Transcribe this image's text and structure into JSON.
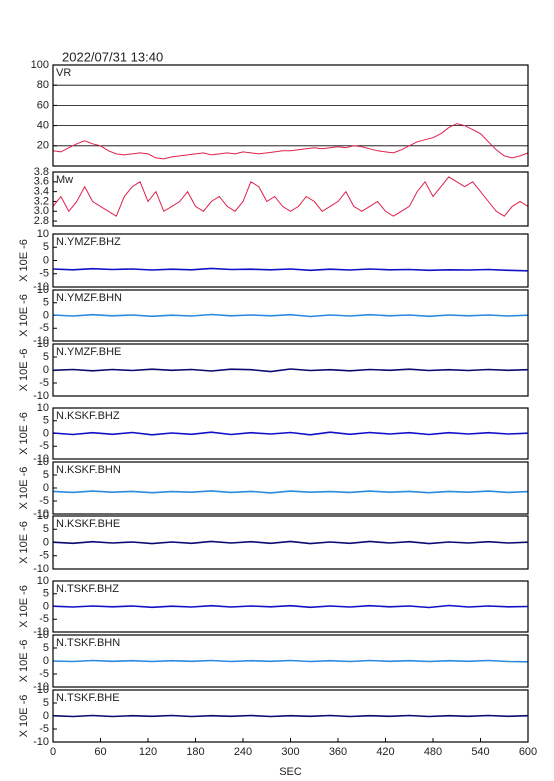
{
  "chart_data": [
    {
      "type": "line",
      "title": "2022/07/31 13:40",
      "xlim": [
        0,
        600
      ],
      "ylim": [
        0,
        100
      ],
      "yticks": [
        20,
        40,
        60,
        80,
        100
      ],
      "grid": true,
      "x": [
        0,
        10,
        20,
        30,
        40,
        50,
        60,
        70,
        80,
        90,
        100,
        110,
        120,
        130,
        140,
        150,
        160,
        170,
        180,
        190,
        200,
        210,
        220,
        230,
        240,
        250,
        260,
        270,
        280,
        290,
        300,
        310,
        320,
        330,
        340,
        350,
        360,
        370,
        380,
        390,
        400,
        410,
        420,
        430,
        440,
        450,
        460,
        470,
        480,
        490,
        500,
        510,
        520,
        530,
        540,
        550,
        560,
        570,
        580,
        590,
        600
      ],
      "series": [
        {
          "name": "VR",
          "color": "#e0204a",
          "values": [
            15,
            14,
            18,
            22,
            25,
            22,
            20,
            15,
            12,
            11,
            12,
            13,
            12,
            8,
            7,
            9,
            10,
            11,
            12,
            13,
            11,
            12,
            13,
            12,
            14,
            13,
            12,
            13,
            14,
            15,
            15,
            16,
            17,
            18,
            17,
            18,
            19,
            18,
            20,
            19,
            17,
            15,
            14,
            13,
            16,
            20,
            24,
            26,
            28,
            32,
            38,
            42,
            40,
            36,
            32,
            24,
            16,
            10,
            8,
            10,
            13
          ]
        }
      ]
    },
    {
      "type": "line",
      "xlim": [
        0,
        600
      ],
      "ylim": [
        2.7,
        3.8
      ],
      "yticks": [
        2.8,
        {
          "value": 3,
          "label": "3.0"
        },
        3.2,
        3.4,
        3.6,
        3.8
      ],
      "grid": false,
      "x": [
        0,
        10,
        20,
        30,
        40,
        50,
        60,
        70,
        80,
        90,
        100,
        110,
        120,
        130,
        140,
        150,
        160,
        170,
        180,
        190,
        200,
        210,
        220,
        230,
        240,
        250,
        260,
        270,
        280,
        290,
        300,
        310,
        320,
        330,
        340,
        350,
        360,
        370,
        380,
        390,
        400,
        410,
        420,
        430,
        440,
        450,
        460,
        470,
        480,
        490,
        500,
        510,
        520,
        530,
        540,
        550,
        560,
        570,
        580,
        590,
        600
      ],
      "series": [
        {
          "name": "Mw",
          "color": "#e0204a",
          "values": [
            3.1,
            3.3,
            3.0,
            3.2,
            3.5,
            3.2,
            3.1,
            3.0,
            2.9,
            3.3,
            3.5,
            3.6,
            3.2,
            3.4,
            3.0,
            3.1,
            3.2,
            3.4,
            3.1,
            3.0,
            3.2,
            3.3,
            3.1,
            3.0,
            3.2,
            3.6,
            3.5,
            3.2,
            3.3,
            3.1,
            3.0,
            3.1,
            3.3,
            3.2,
            3.0,
            3.1,
            3.2,
            3.4,
            3.1,
            3.0,
            3.1,
            3.2,
            3.0,
            2.9,
            3.0,
            3.1,
            3.4,
            3.6,
            3.3,
            3.5,
            3.7,
            3.6,
            3.5,
            3.6,
            3.4,
            3.2,
            3.0,
            2.9,
            3.1,
            3.2,
            3.1
          ]
        }
      ]
    },
    {
      "type": "line",
      "ylabel": "X 10E -6",
      "xlim": [
        0,
        600
      ],
      "ylim": [
        -10,
        10
      ],
      "yticks": [
        -10,
        -5,
        0,
        5,
        10
      ],
      "x": [
        0,
        25,
        50,
        75,
        100,
        125,
        150,
        175,
        200,
        225,
        250,
        275,
        300,
        325,
        350,
        375,
        400,
        425,
        450,
        475,
        500,
        525,
        550,
        575,
        600
      ],
      "series": [
        {
          "name": "N.YMZF.BHZ",
          "color": "#1010c8",
          "values": [
            -3.2,
            -3.5,
            -3.1,
            -3.4,
            -3.2,
            -3.6,
            -3.3,
            -3.5,
            -3.0,
            -3.4,
            -3.3,
            -3.5,
            -3.2,
            -3.7,
            -3.3,
            -3.6,
            -3.2,
            -3.5,
            -3.4,
            -3.7,
            -3.5,
            -3.6,
            -3.4,
            -3.7,
            -3.9
          ]
        }
      ]
    },
    {
      "type": "line",
      "ylabel": "X 10E -6",
      "xlim": [
        0,
        600
      ],
      "ylim": [
        -10,
        10
      ],
      "yticks": [
        -10,
        -5,
        0,
        5,
        10
      ],
      "x": [
        0,
        25,
        50,
        75,
        100,
        125,
        150,
        175,
        200,
        225,
        250,
        275,
        300,
        325,
        350,
        375,
        400,
        425,
        450,
        475,
        500,
        525,
        550,
        575,
        600
      ],
      "series": [
        {
          "name": "N.YMZF.BHN",
          "color": "#2a8ae0",
          "values": [
            0.2,
            -0.2,
            0.3,
            -0.1,
            0.2,
            -0.3,
            0.1,
            -0.2,
            0.4,
            -0.1,
            0.2,
            -0.1,
            0.3,
            -0.4,
            0.2,
            -0.2,
            0.3,
            -0.1,
            0.2,
            -0.3,
            0.2,
            -0.1,
            0.2,
            -0.2,
            0.1
          ]
        }
      ]
    },
    {
      "type": "line",
      "ylabel": "X 10E -6",
      "xlim": [
        0,
        600
      ],
      "ylim": [
        -10,
        10
      ],
      "yticks": [
        -10,
        -5,
        0,
        5,
        10
      ],
      "x": [
        0,
        25,
        50,
        75,
        100,
        125,
        150,
        175,
        200,
        225,
        250,
        275,
        300,
        325,
        350,
        375,
        400,
        425,
        450,
        475,
        500,
        525,
        550,
        575,
        600
      ],
      "series": [
        {
          "name": "N.YMZF.BHE",
          "color": "#0a0a70",
          "values": [
            -0.1,
            0.2,
            -0.3,
            0.2,
            -0.2,
            0.3,
            -0.1,
            0.2,
            -0.4,
            0.3,
            0.1,
            -0.6,
            0.4,
            -0.2,
            0.1,
            -0.3,
            0.2,
            -0.1,
            0.3,
            -0.2,
            0.1,
            -0.2,
            0.2,
            -0.1,
            0.1
          ]
        }
      ]
    },
    {
      "type": "line",
      "ylabel": "X 10E -6",
      "xlim": [
        0,
        600
      ],
      "ylim": [
        -10,
        10
      ],
      "yticks": [
        -10,
        -5,
        0,
        5,
        10
      ],
      "x": [
        0,
        25,
        50,
        75,
        100,
        125,
        150,
        175,
        200,
        225,
        250,
        275,
        300,
        325,
        350,
        375,
        400,
        425,
        450,
        475,
        500,
        525,
        550,
        575,
        600
      ],
      "series": [
        {
          "name": "N.KSKF.BHZ",
          "color": "#1010c8",
          "values": [
            0.2,
            -0.4,
            0.3,
            -0.3,
            0.4,
            -0.5,
            0.2,
            -0.3,
            0.5,
            -0.4,
            0.3,
            -0.2,
            0.4,
            -0.5,
            0.5,
            -0.3,
            0.4,
            -0.2,
            0.3,
            -0.4,
            0.3,
            -0.2,
            0.3,
            -0.2,
            0.1
          ]
        }
      ]
    },
    {
      "type": "line",
      "ylabel": "X 10E -6",
      "xlim": [
        0,
        600
      ],
      "ylim": [
        -10,
        10
      ],
      "yticks": [
        -10,
        -5,
        0,
        5,
        10
      ],
      "x": [
        0,
        25,
        50,
        75,
        100,
        125,
        150,
        175,
        200,
        225,
        250,
        275,
        300,
        325,
        350,
        375,
        400,
        425,
        450,
        475,
        500,
        525,
        550,
        575,
        600
      ],
      "series": [
        {
          "name": "N.KSKF.BHN",
          "color": "#2a8ae0",
          "values": [
            -1.3,
            -1.7,
            -1.2,
            -1.6,
            -1.3,
            -1.8,
            -1.4,
            -1.6,
            -1.1,
            -1.7,
            -1.3,
            -1.9,
            -1.2,
            -1.6,
            -1.4,
            -1.7,
            -1.2,
            -1.6,
            -1.3,
            -1.8,
            -1.3,
            -1.6,
            -1.2,
            -1.7,
            -1.4
          ]
        }
      ]
    },
    {
      "type": "line",
      "ylabel": "X 10E -6",
      "xlim": [
        0,
        600
      ],
      "ylim": [
        -10,
        10
      ],
      "yticks": [
        -10,
        -5,
        0,
        5,
        10
      ],
      "x": [
        0,
        25,
        50,
        75,
        100,
        125,
        150,
        175,
        200,
        225,
        250,
        275,
        300,
        325,
        350,
        375,
        400,
        425,
        450,
        475,
        500,
        525,
        550,
        575,
        600
      ],
      "series": [
        {
          "name": "N.KSKF.BHE",
          "color": "#0a0a70",
          "values": [
            0.1,
            -0.3,
            0.3,
            -0.2,
            0.2,
            -0.4,
            0.2,
            -0.3,
            0.4,
            -0.2,
            0.3,
            -0.3,
            0.4,
            -0.4,
            0.2,
            -0.3,
            0.4,
            -0.2,
            0.3,
            -0.4,
            0.2,
            -0.2,
            0.3,
            -0.2,
            0.1
          ]
        }
      ]
    },
    {
      "type": "line",
      "ylabel": "X 10E -6",
      "xlim": [
        0,
        600
      ],
      "ylim": [
        -10,
        10
      ],
      "yticks": [
        -10,
        -5,
        0,
        5,
        10
      ],
      "x": [
        0,
        25,
        50,
        75,
        100,
        125,
        150,
        175,
        200,
        225,
        250,
        275,
        300,
        325,
        350,
        375,
        400,
        425,
        450,
        475,
        500,
        525,
        550,
        575,
        600
      ],
      "series": [
        {
          "name": "N.TSKF.BHZ",
          "color": "#1010c8",
          "values": [
            0.1,
            -0.2,
            0.2,
            -0.1,
            0.2,
            -0.3,
            0.1,
            -0.2,
            0.3,
            -0.2,
            0.2,
            -0.1,
            0.3,
            -0.3,
            0.2,
            -0.2,
            0.3,
            -0.1,
            0.2,
            -0.4,
            0.4,
            -0.2,
            0.2,
            -0.1,
            0.0
          ]
        }
      ]
    },
    {
      "type": "line",
      "ylabel": "X 10E -6",
      "xlim": [
        0,
        600
      ],
      "ylim": [
        -10,
        10
      ],
      "yticks": [
        -10,
        -5,
        0,
        5,
        10
      ],
      "x": [
        0,
        25,
        50,
        75,
        100,
        125,
        150,
        175,
        200,
        225,
        250,
        275,
        300,
        325,
        350,
        375,
        400,
        425,
        450,
        475,
        500,
        525,
        550,
        575,
        600
      ],
      "series": [
        {
          "name": "N.TSKF.BHN",
          "color": "#2a8ae0",
          "values": [
            0.0,
            -0.2,
            0.2,
            -0.1,
            0.1,
            -0.2,
            0.1,
            -0.1,
            0.2,
            -0.2,
            0.1,
            -0.1,
            0.2,
            -0.2,
            0.1,
            -0.2,
            0.2,
            -0.1,
            0.1,
            -0.2,
            0.1,
            -0.1,
            0.2,
            -0.2,
            -0.3
          ]
        }
      ]
    },
    {
      "type": "line",
      "ylabel": "X 10E -6",
      "xlabel": "SEC",
      "xlim": [
        0,
        600
      ],
      "ylim": [
        -10,
        10
      ],
      "yticks": [
        -10,
        -5,
        0,
        5,
        10
      ],
      "xticks": [
        0,
        60,
        120,
        180,
        240,
        300,
        360,
        420,
        480,
        540,
        600
      ],
      "x": [
        0,
        25,
        50,
        75,
        100,
        125,
        150,
        175,
        200,
        225,
        250,
        275,
        300,
        325,
        350,
        375,
        400,
        425,
        450,
        475,
        500,
        525,
        550,
        575,
        600
      ],
      "series": [
        {
          "name": "N.TSKF.BHE",
          "color": "#0a0a70",
          "values": [
            0.1,
            -0.2,
            0.2,
            -0.2,
            0.1,
            -0.1,
            0.2,
            -0.2,
            0.1,
            -0.1,
            0.2,
            -0.2,
            0.1,
            -0.1,
            0.2,
            -0.2,
            0.1,
            -0.1,
            0.2,
            -0.2,
            0.1,
            -0.1,
            0.2,
            -0.1,
            0.1
          ]
        }
      ]
    }
  ]
}
